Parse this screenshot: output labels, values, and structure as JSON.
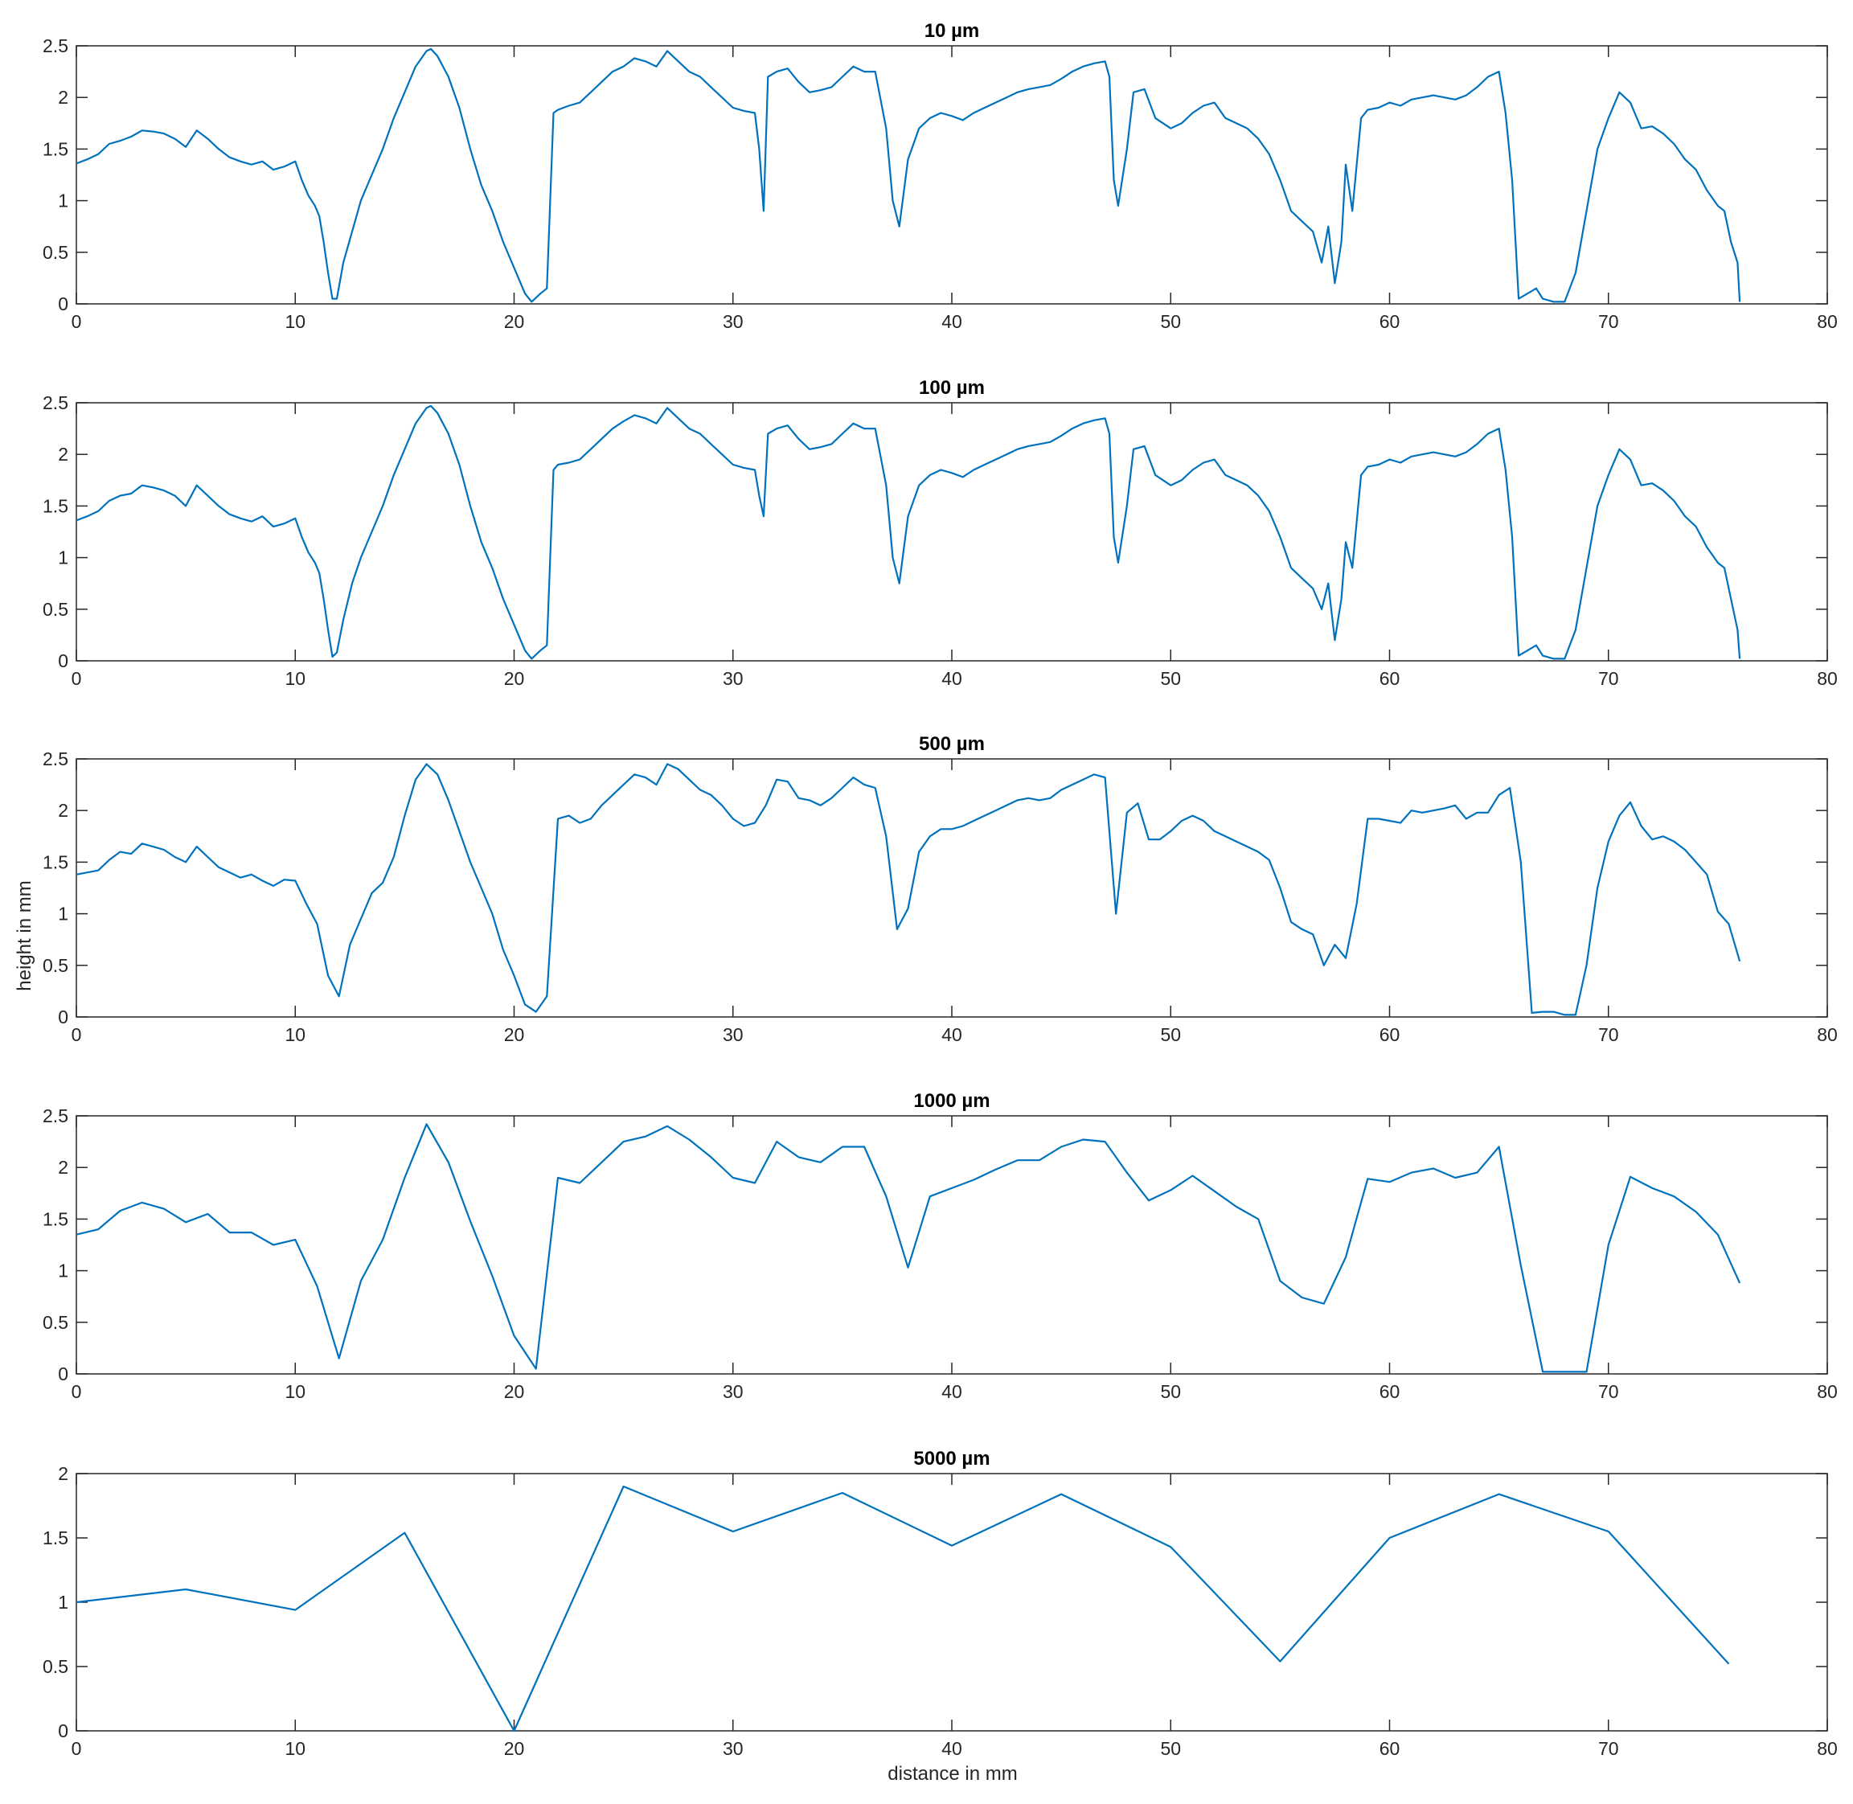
{
  "figure": {
    "ylabel": "height in mm",
    "xlabel": "distance in mm"
  },
  "colors": {
    "line": "#0072BD",
    "axes": "#262626",
    "background": "#ffffff"
  },
  "chart_data": [
    {
      "type": "line",
      "title": "10 µm",
      "xlabel": "",
      "ylabel": "",
      "xlim": [
        0,
        80
      ],
      "ylim": [
        0,
        2.5
      ],
      "xticks": [
        0,
        10,
        20,
        30,
        40,
        50,
        60,
        70,
        80
      ],
      "yticks": [
        0,
        0.5,
        1,
        1.5,
        2,
        2.5
      ],
      "grid": false,
      "x": [
        0,
        0.5,
        1,
        1.5,
        2,
        2.5,
        3,
        3.5,
        4,
        4.5,
        5,
        5.5,
        6,
        6.5,
        7,
        7.5,
        8,
        8.5,
        9,
        9.5,
        10,
        10.3,
        10.6,
        10.9,
        11.1,
        11.3,
        11.5,
        11.7,
        11.9,
        12.2,
        12.6,
        13,
        13.5,
        14,
        14.5,
        15,
        15.5,
        16,
        16.2,
        16.5,
        17,
        17.5,
        18,
        18.5,
        19,
        19.5,
        20,
        20.5,
        20.8,
        21.2,
        21.5,
        21.8,
        22,
        22.5,
        23,
        23.5,
        24,
        24.5,
        25,
        25.5,
        26,
        26.5,
        27,
        27.5,
        28,
        28.5,
        29,
        29.5,
        30,
        30.5,
        31,
        31.2,
        31.4,
        31.6,
        32,
        32.5,
        33,
        33.5,
        34,
        34.5,
        35,
        35.5,
        36,
        36.5,
        37,
        37.3,
        37.6,
        38,
        38.5,
        39,
        39.5,
        40,
        40.5,
        41,
        41.5,
        42,
        42.5,
        43,
        43.5,
        44,
        44.5,
        45,
        45.5,
        46,
        46.5,
        47,
        47.2,
        47.4,
        47.6,
        48,
        48.3,
        48.8,
        49.3,
        50,
        50.5,
        51,
        51.5,
        52,
        52.5,
        53,
        53.5,
        54,
        54.5,
        55,
        55.5,
        56,
        56.5,
        56.9,
        57.2,
        57.5,
        57.8,
        58,
        58.3,
        58.7,
        59,
        59.5,
        60,
        60.5,
        61,
        61.5,
        62,
        62.5,
        63,
        63.5,
        64,
        64.5,
        65,
        65.3,
        65.6,
        65.9,
        66.3,
        66.7,
        67,
        67.5,
        68,
        68.5,
        69,
        69.5,
        70,
        70.5,
        71,
        71.5,
        72,
        72.5,
        73,
        73.5,
        74,
        74.5,
        75,
        75.3,
        75.6,
        75.9,
        76
      ],
      "y": [
        1.36,
        1.4,
        1.45,
        1.55,
        1.58,
        1.62,
        1.68,
        1.67,
        1.65,
        1.6,
        1.52,
        1.68,
        1.6,
        1.5,
        1.42,
        1.38,
        1.35,
        1.38,
        1.3,
        1.33,
        1.38,
        1.2,
        1.05,
        0.95,
        0.85,
        0.6,
        0.3,
        0.05,
        0.05,
        0.4,
        0.7,
        1.0,
        1.25,
        1.5,
        1.8,
        2.05,
        2.3,
        2.45,
        2.47,
        2.4,
        2.2,
        1.9,
        1.5,
        1.15,
        0.9,
        0.6,
        0.35,
        0.1,
        0.02,
        0.1,
        0.15,
        1.85,
        1.88,
        1.92,
        1.95,
        2.05,
        2.15,
        2.25,
        2.3,
        2.38,
        2.35,
        2.3,
        2.45,
        2.35,
        2.25,
        2.2,
        2.1,
        2.0,
        1.9,
        1.87,
        1.85,
        1.5,
        0.9,
        2.2,
        2.25,
        2.28,
        2.15,
        2.05,
        2.07,
        2.1,
        2.2,
        2.3,
        2.25,
        2.25,
        1.7,
        1.0,
        0.75,
        1.4,
        1.7,
        1.8,
        1.85,
        1.82,
        1.78,
        1.85,
        1.9,
        1.95,
        2.0,
        2.05,
        2.08,
        2.1,
        2.12,
        2.18,
        2.25,
        2.3,
        2.33,
        2.35,
        2.2,
        1.2,
        0.95,
        1.5,
        2.05,
        2.08,
        1.8,
        1.7,
        1.75,
        1.85,
        1.92,
        1.95,
        1.8,
        1.75,
        1.7,
        1.6,
        1.45,
        1.2,
        0.9,
        0.8,
        0.7,
        0.4,
        0.75,
        0.2,
        0.6,
        1.35,
        0.9,
        1.8,
        1.88,
        1.9,
        1.95,
        1.92,
        1.98,
        2.0,
        2.02,
        2.0,
        1.98,
        2.02,
        2.1,
        2.2,
        2.25,
        1.85,
        1.2,
        0.05,
        0.1,
        0.15,
        0.05,
        0.02,
        0.02,
        0.3,
        0.9,
        1.5,
        1.8,
        2.05,
        1.95,
        1.7,
        1.72,
        1.65,
        1.55,
        1.4,
        1.3,
        1.1,
        0.95,
        0.9,
        0.6,
        0.4,
        0.02
      ]
    },
    {
      "type": "line",
      "title": "100 µm",
      "xlabel": "",
      "ylabel": "",
      "xlim": [
        0,
        80
      ],
      "ylim": [
        0,
        2.5
      ],
      "xticks": [
        0,
        10,
        20,
        30,
        40,
        50,
        60,
        70,
        80
      ],
      "yticks": [
        0,
        0.5,
        1,
        1.5,
        2,
        2.5
      ],
      "grid": false,
      "x": [
        0,
        0.5,
        1,
        1.5,
        2,
        2.5,
        3,
        3.5,
        4,
        4.5,
        5,
        5.5,
        6,
        6.5,
        7,
        7.5,
        8,
        8.5,
        9,
        9.5,
        10,
        10.3,
        10.6,
        10.9,
        11.1,
        11.3,
        11.5,
        11.7,
        11.9,
        12.2,
        12.6,
        13,
        13.5,
        14,
        14.5,
        15,
        15.5,
        16,
        16.2,
        16.5,
        17,
        17.5,
        18,
        18.5,
        19,
        19.5,
        20,
        20.5,
        20.8,
        21.2,
        21.5,
        21.8,
        22,
        22.5,
        23,
        23.5,
        24,
        24.5,
        25,
        25.5,
        26,
        26.5,
        27,
        27.5,
        28,
        28.5,
        29,
        29.5,
        30,
        30.5,
        31,
        31.2,
        31.4,
        31.6,
        32,
        32.5,
        33,
        33.5,
        34,
        34.5,
        35,
        35.5,
        36,
        36.5,
        37,
        37.3,
        37.6,
        38,
        38.5,
        39,
        39.5,
        40,
        40.5,
        41,
        41.5,
        42,
        42.5,
        43,
        43.5,
        44,
        44.5,
        45,
        45.5,
        46,
        46.5,
        47,
        47.2,
        47.4,
        47.6,
        48,
        48.3,
        48.8,
        49.3,
        50,
        50.5,
        51,
        51.5,
        52,
        52.5,
        53,
        53.5,
        54,
        54.5,
        55,
        55.5,
        56,
        56.5,
        56.9,
        57.2,
        57.5,
        57.8,
        58,
        58.3,
        58.7,
        59,
        59.5,
        60,
        60.5,
        61,
        61.5,
        62,
        62.5,
        63,
        63.5,
        64,
        64.5,
        65,
        65.3,
        65.6,
        65.9,
        66.3,
        66.7,
        67,
        67.5,
        68,
        68.5,
        69,
        69.5,
        70,
        70.5,
        71,
        71.5,
        72,
        72.5,
        73,
        73.5,
        74,
        74.5,
        75,
        75.3,
        75.6,
        75.9,
        76
      ],
      "y": [
        1.36,
        1.4,
        1.45,
        1.55,
        1.6,
        1.62,
        1.7,
        1.68,
        1.65,
        1.6,
        1.5,
        1.7,
        1.6,
        1.5,
        1.42,
        1.38,
        1.35,
        1.4,
        1.3,
        1.33,
        1.38,
        1.2,
        1.05,
        0.95,
        0.85,
        0.6,
        0.3,
        0.04,
        0.08,
        0.4,
        0.75,
        1.0,
        1.25,
        1.5,
        1.8,
        2.05,
        2.3,
        2.45,
        2.47,
        2.4,
        2.2,
        1.9,
        1.5,
        1.15,
        0.9,
        0.6,
        0.35,
        0.1,
        0.02,
        0.1,
        0.15,
        1.85,
        1.9,
        1.92,
        1.95,
        2.05,
        2.15,
        2.25,
        2.32,
        2.38,
        2.35,
        2.3,
        2.45,
        2.35,
        2.25,
        2.2,
        2.1,
        2.0,
        1.9,
        1.87,
        1.85,
        1.6,
        1.4,
        2.2,
        2.25,
        2.28,
        2.15,
        2.05,
        2.07,
        2.1,
        2.2,
        2.3,
        2.25,
        2.25,
        1.7,
        1.0,
        0.75,
        1.4,
        1.7,
        1.8,
        1.85,
        1.82,
        1.78,
        1.85,
        1.9,
        1.95,
        2.0,
        2.05,
        2.08,
        2.1,
        2.12,
        2.18,
        2.25,
        2.3,
        2.33,
        2.35,
        2.2,
        1.2,
        0.95,
        1.5,
        2.05,
        2.08,
        1.8,
        1.7,
        1.75,
        1.85,
        1.92,
        1.95,
        1.8,
        1.75,
        1.7,
        1.6,
        1.45,
        1.2,
        0.9,
        0.8,
        0.7,
        0.5,
        0.75,
        0.2,
        0.6,
        1.15,
        0.9,
        1.8,
        1.88,
        1.9,
        1.95,
        1.92,
        1.98,
        2.0,
        2.02,
        2.0,
        1.98,
        2.02,
        2.1,
        2.2,
        2.25,
        1.85,
        1.2,
        0.05,
        0.1,
        0.15,
        0.05,
        0.02,
        0.02,
        0.3,
        0.9,
        1.5,
        1.8,
        2.05,
        1.95,
        1.7,
        1.72,
        1.65,
        1.55,
        1.4,
        1.3,
        1.1,
        0.95,
        0.9,
        0.6,
        0.3,
        0.02
      ]
    },
    {
      "type": "line",
      "title": "500 µm",
      "xlabel": "",
      "ylabel": "height in mm",
      "xlim": [
        0,
        80
      ],
      "ylim": [
        0,
        2.5
      ],
      "xticks": [
        0,
        10,
        20,
        30,
        40,
        50,
        60,
        70,
        80
      ],
      "yticks": [
        0,
        0.5,
        1,
        1.5,
        2,
        2.5
      ],
      "grid": false,
      "x": [
        0,
        1,
        1.5,
        2,
        2.5,
        3,
        3.5,
        4,
        4.5,
        5,
        5.5,
        6,
        6.5,
        7,
        7.5,
        8,
        8.5,
        9,
        9.5,
        10,
        10.5,
        11,
        11.5,
        12,
        12.5,
        13,
        13.5,
        14,
        14.5,
        15,
        15.5,
        16,
        16.5,
        17,
        17.5,
        18,
        18.5,
        19,
        19.5,
        20,
        20.5,
        21,
        21.5,
        22,
        22.5,
        23,
        23.5,
        24,
        24.5,
        25,
        25.5,
        26,
        26.5,
        27,
        27.5,
        28,
        28.5,
        29,
        29.5,
        30,
        30.5,
        31,
        31.5,
        32,
        32.5,
        33,
        33.5,
        34,
        34.5,
        35,
        35.5,
        36,
        36.5,
        37,
        37.5,
        38,
        38.5,
        39,
        39.5,
        40,
        40.5,
        41,
        41.5,
        42,
        42.5,
        43,
        43.5,
        44,
        44.5,
        45,
        45.5,
        46,
        46.5,
        47,
        47.5,
        48,
        48.5,
        49,
        49.5,
        50,
        50.5,
        51,
        51.5,
        52,
        52.5,
        53,
        53.5,
        54,
        54.5,
        55,
        55.5,
        56,
        56.5,
        57,
        57.5,
        58,
        58.5,
        59,
        59.5,
        60,
        60.5,
        61,
        61.5,
        62,
        62.5,
        63,
        63.5,
        64,
        64.5,
        65,
        65.5,
        66,
        66.5,
        67,
        67.5,
        68,
        68.5,
        69,
        69.5,
        70,
        70.5,
        71,
        71.5,
        72,
        72.5,
        73,
        73.5,
        74,
        74.5,
        75,
        75.5,
        76
      ],
      "y": [
        1.38,
        1.42,
        1.52,
        1.6,
        1.58,
        1.68,
        1.65,
        1.62,
        1.55,
        1.5,
        1.65,
        1.55,
        1.45,
        1.4,
        1.35,
        1.38,
        1.32,
        1.27,
        1.33,
        1.32,
        1.1,
        0.9,
        0.4,
        0.2,
        0.7,
        0.95,
        1.2,
        1.3,
        1.55,
        1.95,
        2.3,
        2.45,
        2.35,
        2.1,
        1.8,
        1.5,
        1.25,
        1.0,
        0.65,
        0.4,
        0.12,
        0.05,
        0.2,
        1.92,
        1.95,
        1.88,
        1.92,
        2.05,
        2.15,
        2.25,
        2.35,
        2.32,
        2.25,
        2.45,
        2.4,
        2.3,
        2.2,
        2.15,
        2.05,
        1.92,
        1.85,
        1.88,
        2.05,
        2.3,
        2.28,
        2.12,
        2.1,
        2.05,
        2.12,
        2.22,
        2.32,
        2.25,
        2.22,
        1.75,
        0.85,
        1.05,
        1.6,
        1.75,
        1.82,
        1.82,
        1.85,
        1.9,
        1.95,
        2.0,
        2.05,
        2.1,
        2.12,
        2.1,
        2.12,
        2.2,
        2.25,
        2.3,
        2.35,
        2.32,
        1.0,
        1.98,
        2.07,
        1.72,
        1.72,
        1.8,
        1.9,
        1.95,
        1.9,
        1.8,
        1.75,
        1.7,
        1.65,
        1.6,
        1.52,
        1.25,
        0.92,
        0.85,
        0.8,
        0.5,
        0.7,
        0.57,
        1.1,
        1.92,
        1.92,
        1.9,
        1.88,
        2.0,
        1.98,
        2.0,
        2.02,
        2.05,
        1.92,
        1.98,
        1.98,
        2.15,
        2.22,
        1.5,
        0.04,
        0.05,
        0.05,
        0.02,
        0.02,
        0.5,
        1.25,
        1.7,
        1.95,
        2.08,
        1.85,
        1.72,
        1.75,
        1.7,
        1.62,
        1.5,
        1.38,
        1.02,
        0.9,
        0.54
      ]
    },
    {
      "type": "line",
      "title": "1000 µm",
      "xlabel": "",
      "ylabel": "",
      "xlim": [
        0,
        80
      ],
      "ylim": [
        0,
        2.5
      ],
      "xticks": [
        0,
        10,
        20,
        30,
        40,
        50,
        60,
        70,
        80
      ],
      "yticks": [
        0,
        0.5,
        1,
        1.5,
        2,
        2.5
      ],
      "grid": false,
      "x": [
        0,
        1,
        2,
        3,
        4,
        5,
        6,
        7,
        8,
        9,
        10,
        11,
        12,
        13,
        14,
        15,
        16,
        17,
        18,
        19,
        20,
        21,
        22,
        23,
        24,
        25,
        26,
        27,
        28,
        29,
        30,
        31,
        32,
        33,
        34,
        35,
        36,
        37,
        38,
        39,
        40,
        41,
        42,
        43,
        44,
        45,
        46,
        47,
        48,
        49,
        50,
        51,
        52,
        53,
        54,
        55,
        56,
        57,
        58,
        59,
        60,
        61,
        62,
        63,
        64,
        65,
        66,
        67,
        68,
        69,
        70,
        71,
        72,
        73,
        74,
        75,
        76
      ],
      "y": [
        1.35,
        1.4,
        1.58,
        1.66,
        1.6,
        1.47,
        1.55,
        1.37,
        1.37,
        1.25,
        1.3,
        0.85,
        0.15,
        0.9,
        1.3,
        1.9,
        2.42,
        2.05,
        1.48,
        0.95,
        0.37,
        0.05,
        1.9,
        1.85,
        2.05,
        2.25,
        2.3,
        2.4,
        2.27,
        2.1,
        1.9,
        1.85,
        2.25,
        2.1,
        2.05,
        2.2,
        2.2,
        1.72,
        1.03,
        1.72,
        1.8,
        1.88,
        1.98,
        2.07,
        2.07,
        2.2,
        2.27,
        2.25,
        1.95,
        1.68,
        1.78,
        1.92,
        1.77,
        1.62,
        1.5,
        0.9,
        0.74,
        0.68,
        1.13,
        1.89,
        1.86,
        1.95,
        1.99,
        1.9,
        1.95,
        2.2,
        1.05,
        0.02,
        0.02,
        0.02,
        1.25,
        1.91,
        1.8,
        1.72,
        1.57,
        1.35,
        0.88
      ]
    },
    {
      "type": "line",
      "title": "5000 µm",
      "xlabel": "distance in mm",
      "ylabel": "",
      "xlim": [
        0,
        80
      ],
      "ylim": [
        0,
        2
      ],
      "xticks": [
        0,
        10,
        20,
        30,
        40,
        50,
        60,
        70,
        80
      ],
      "yticks": [
        0,
        0.5,
        1,
        1.5,
        2
      ],
      "grid": false,
      "x": [
        0,
        5,
        10,
        15,
        20,
        25,
        30,
        35,
        40,
        45,
        50,
        55,
        60,
        65,
        70,
        75.5
      ],
      "y": [
        1.0,
        1.1,
        0.94,
        1.54,
        0.0,
        1.9,
        1.55,
        1.85,
        1.44,
        1.84,
        1.43,
        0.54,
        1.5,
        1.84,
        1.55,
        0.52
      ]
    }
  ]
}
